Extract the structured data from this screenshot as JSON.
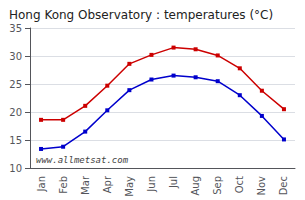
{
  "chart_data": {
    "type": "line",
    "title": "Hong Kong Observatory : temperatures (°C)",
    "categories": [
      "Jan",
      "Feb",
      "Mar",
      "Apr",
      "May",
      "Jun",
      "Jul",
      "Aug",
      "Sep",
      "Oct",
      "Nov",
      "Dec"
    ],
    "series": [
      {
        "color": "#cc0000",
        "values": [
          18.6,
          18.6,
          21.1,
          24.7,
          28.6,
          30.2,
          31.5,
          31.2,
          30.1,
          27.8,
          23.8,
          20.5
        ]
      },
      {
        "color": "#0000cc",
        "values": [
          13.4,
          13.8,
          16.5,
          20.3,
          23.9,
          25.8,
          26.5,
          26.2,
          25.5,
          23.0,
          19.3,
          15.1
        ]
      }
    ],
    "ylim": [
      10,
      35
    ],
    "yticks": [
      10,
      15,
      20,
      25,
      30,
      35
    ],
    "grid": true,
    "marker": "square",
    "line_style": "solid",
    "annotation": "www.allmetsat.com"
  }
}
